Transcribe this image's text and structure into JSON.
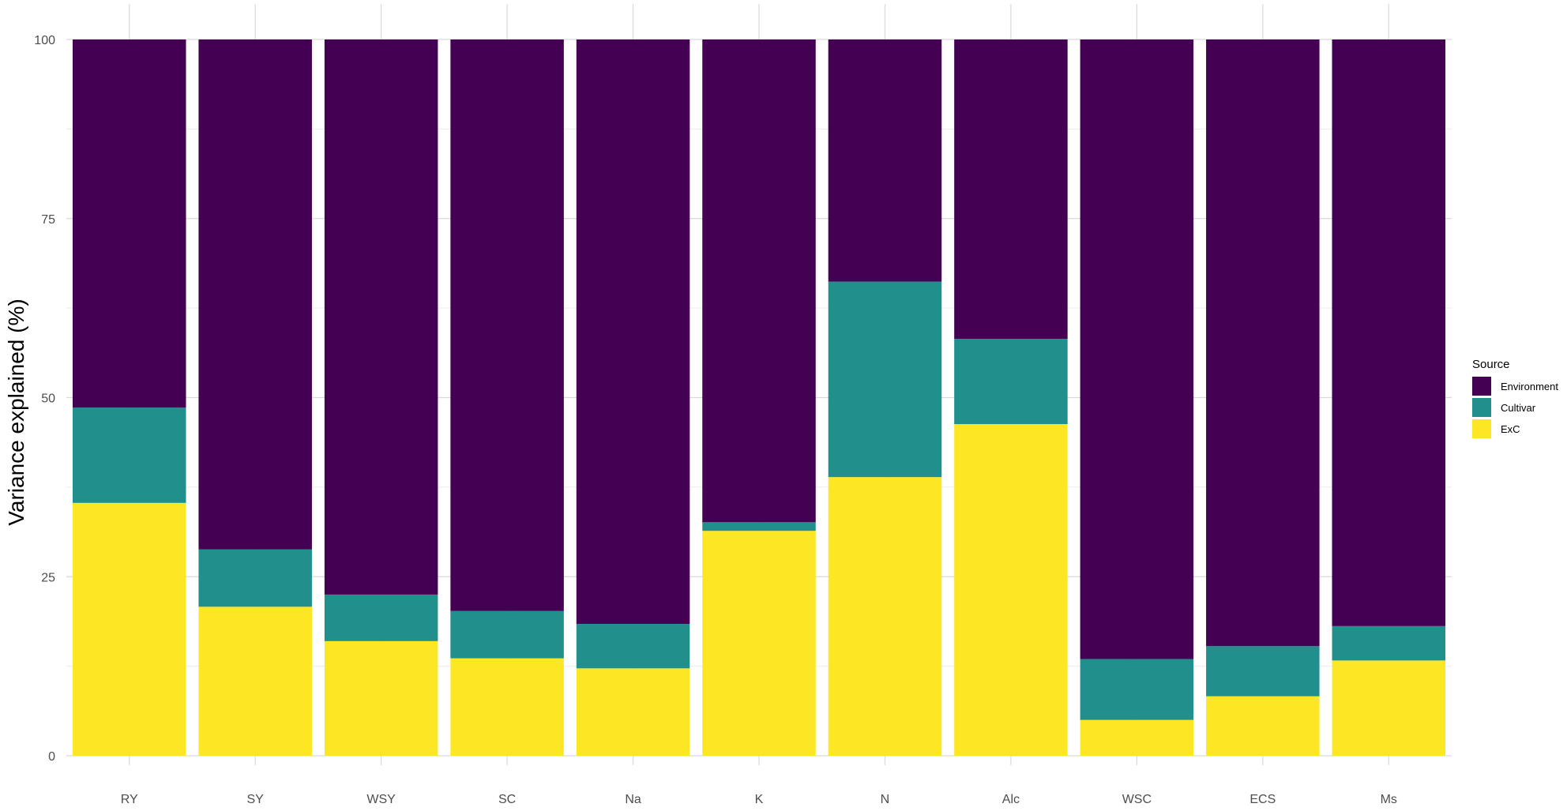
{
  "chart_data": {
    "type": "bar",
    "stacked": true,
    "categories": [
      "RY",
      "SY",
      "WSY",
      "SC",
      "Na",
      "K",
      "N",
      "Alc",
      "WSC",
      "ECS",
      "Ms"
    ],
    "series": [
      {
        "name": "ExC",
        "color": "#FDE725",
        "values": [
          35.3,
          20.8,
          16.0,
          13.6,
          12.2,
          31.4,
          38.9,
          46.3,
          5.0,
          8.3,
          13.3
        ]
      },
      {
        "name": "Cultivar",
        "color": "#21908C",
        "values": [
          13.3,
          8.0,
          6.5,
          6.6,
          6.2,
          1.2,
          27.3,
          11.9,
          8.5,
          7.0,
          4.8
        ]
      },
      {
        "name": "Environment",
        "color": "#440154",
        "values": [
          51.4,
          71.2,
          77.5,
          79.8,
          81.6,
          67.4,
          33.8,
          41.8,
          86.5,
          84.7,
          81.9
        ]
      }
    ],
    "ylabel": "Variance explained (%)",
    "ylim": [
      0,
      100
    ],
    "yticks": [
      0,
      25,
      50,
      75,
      100
    ],
    "grid": true,
    "legend": {
      "title": "Source",
      "position": "right",
      "entries": [
        {
          "label": "Environment",
          "color": "#440154"
        },
        {
          "label": "Cultivar",
          "color": "#21908C"
        },
        {
          "label": "ExC",
          "color": "#FDE725"
        }
      ]
    }
  }
}
